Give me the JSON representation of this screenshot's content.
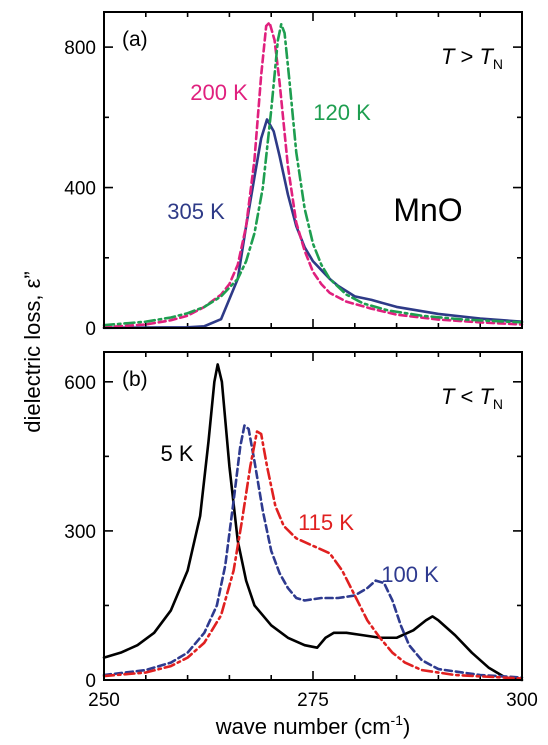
{
  "chart_data": [
    {
      "type": "line",
      "panel_label": "(a)",
      "condition": {
        "italic": "T",
        "relation": " > ",
        "italic2": "T",
        "subscript": "N"
      },
      "material_label": "MnO",
      "xlim": [
        250,
        300
      ],
      "ylim": [
        0,
        900
      ],
      "yticks": [
        0,
        400,
        800
      ],
      "x_tick_labels": [],
      "series": [
        {
          "name": "305 K",
          "color": "#2e3a87",
          "style": "solid",
          "points": [
            [
              250,
              0.5
            ],
            [
              260,
              2
            ],
            [
              262,
              5
            ],
            [
              264,
              25
            ],
            [
              266,
              140
            ],
            [
              267,
              290
            ],
            [
              268,
              430
            ],
            [
              268.8,
              540
            ],
            [
              269.5,
              594
            ],
            [
              270.3,
              560
            ],
            [
              271,
              490
            ],
            [
              272,
              380
            ],
            [
              273,
              290
            ],
            [
              274,
              230
            ],
            [
              275,
              190
            ],
            [
              276,
              165
            ],
            [
              277,
              140
            ],
            [
              278,
              120
            ],
            [
              279,
              105
            ],
            [
              280,
              90
            ],
            [
              282,
              80
            ],
            [
              285,
              60
            ],
            [
              290,
              40
            ],
            [
              295,
              27
            ],
            [
              300,
              18
            ]
          ]
        },
        {
          "name": "200 K",
          "color": "#e0207e",
          "style": "dashed",
          "points": [
            [
              250,
              2
            ],
            [
              255,
              10
            ],
            [
              258,
              22
            ],
            [
              260,
              35
            ],
            [
              262,
              60
            ],
            [
              264,
              95
            ],
            [
              265,
              125
            ],
            [
              266,
              180
            ],
            [
              267,
              290
            ],
            [
              268,
              480
            ],
            [
              268.8,
              720
            ],
            [
              269.4,
              860
            ],
            [
              269.8,
              870
            ],
            [
              270.4,
              820
            ],
            [
              271,
              700
            ],
            [
              272,
              460
            ],
            [
              273,
              300
            ],
            [
              274,
              220
            ],
            [
              275,
              160
            ],
            [
              276,
              125
            ],
            [
              277,
              100
            ],
            [
              279,
              75
            ],
            [
              282,
              55
            ],
            [
              285,
              38
            ],
            [
              290,
              24
            ],
            [
              295,
              16
            ],
            [
              300,
              10
            ]
          ]
        },
        {
          "name": "120 K",
          "color": "#1e9e50",
          "style": "dashdot",
          "points": [
            [
              250,
              8
            ],
            [
              255,
              18
            ],
            [
              258,
              30
            ],
            [
              260,
              42
            ],
            [
              262,
              60
            ],
            [
              264,
              90
            ],
            [
              266,
              140
            ],
            [
              267,
              190
            ],
            [
              268,
              270
            ],
            [
              269,
              400
            ],
            [
              270,
              620
            ],
            [
              270.8,
              820
            ],
            [
              271.2,
              865
            ],
            [
              271.6,
              840
            ],
            [
              272.2,
              700
            ],
            [
              273,
              500
            ],
            [
              274,
              340
            ],
            [
              275,
              240
            ],
            [
              276,
              180
            ],
            [
              277,
              140
            ],
            [
              279,
              95
            ],
            [
              281,
              70
            ],
            [
              284,
              50
            ],
            [
              288,
              35
            ],
            [
              293,
              24
            ],
            [
              300,
              16
            ]
          ]
        }
      ]
    },
    {
      "type": "line",
      "panel_label": "(b)",
      "condition": {
        "italic": "T",
        "relation": " < ",
        "italic2": "T",
        "subscript": "N"
      },
      "xlim": [
        250,
        300
      ],
      "ylim": [
        0,
        660
      ],
      "yticks": [
        0,
        300,
        600
      ],
      "x_tick_labels": [
        "250",
        "275",
        "300"
      ],
      "xlabel": "wave number (cm",
      "xlabel_sup": "-1",
      "xlabel_end": ")",
      "series": [
        {
          "name": "5 K",
          "color": "#000000",
          "style": "solid",
          "points": [
            [
              250,
              45
            ],
            [
              252,
              55
            ],
            [
              254,
              70
            ],
            [
              256,
              95
            ],
            [
              258,
              140
            ],
            [
              260,
              220
            ],
            [
              261.5,
              330
            ],
            [
              262.5,
              480
            ],
            [
              263.2,
              600
            ],
            [
              263.6,
              635
            ],
            [
              264.1,
              600
            ],
            [
              265,
              430
            ],
            [
              266,
              280
            ],
            [
              267,
              200
            ],
            [
              268,
              150
            ],
            [
              270,
              110
            ],
            [
              272,
              85
            ],
            [
              274,
              70
            ],
            [
              275.5,
              65
            ],
            [
              276.5,
              85
            ],
            [
              277.5,
              95
            ],
            [
              279,
              95
            ],
            [
              281,
              90
            ],
            [
              283,
              85
            ],
            [
              285,
              85
            ],
            [
              287,
              100
            ],
            [
              288.5,
              120
            ],
            [
              289.3,
              128
            ],
            [
              290,
              120
            ],
            [
              292,
              90
            ],
            [
              294,
              55
            ],
            [
              296,
              25
            ],
            [
              298,
              5
            ],
            [
              300,
              0
            ]
          ]
        },
        {
          "name": "100 K",
          "color": "#2e3a8f",
          "style": "dashed",
          "points": [
            [
              250,
              10
            ],
            [
              255,
              20
            ],
            [
              258,
              35
            ],
            [
              260,
              55
            ],
            [
              262,
              95
            ],
            [
              263.5,
              150
            ],
            [
              264.5,
              230
            ],
            [
              265.5,
              360
            ],
            [
              266.3,
              470
            ],
            [
              266.8,
              512
            ],
            [
              267.3,
              505
            ],
            [
              268,
              440
            ],
            [
              269,
              340
            ],
            [
              270,
              260
            ],
            [
              271,
              215
            ],
            [
              272,
              185
            ],
            [
              273,
              165
            ],
            [
              274,
              160
            ],
            [
              276,
              165
            ],
            [
              278,
              165
            ],
            [
              280,
              170
            ],
            [
              281.5,
              185
            ],
            [
              282.5,
              200
            ],
            [
              283.5,
              195
            ],
            [
              284.5,
              160
            ],
            [
              285.5,
              110
            ],
            [
              286.5,
              70
            ],
            [
              288,
              40
            ],
            [
              290,
              22
            ],
            [
              295,
              10
            ],
            [
              300,
              5
            ]
          ]
        },
        {
          "name": "115 K",
          "color": "#e02020",
          "style": "dashdot",
          "points": [
            [
              250,
              8
            ],
            [
              255,
              15
            ],
            [
              258,
              28
            ],
            [
              260,
              45
            ],
            [
              262,
              75
            ],
            [
              264,
              130
            ],
            [
              265.5,
              220
            ],
            [
              266.5,
              320
            ],
            [
              267.5,
              430
            ],
            [
              268.3,
              500
            ],
            [
              268.8,
              495
            ],
            [
              269.5,
              430
            ],
            [
              270.5,
              350
            ],
            [
              271.5,
              310
            ],
            [
              273,
              285
            ],
            [
              275,
              270
            ],
            [
              277,
              255
            ],
            [
              278.5,
              220
            ],
            [
              280,
              170
            ],
            [
              281.5,
              120
            ],
            [
              283,
              85
            ],
            [
              284.5,
              55
            ],
            [
              286,
              35
            ],
            [
              288,
              20
            ],
            [
              292,
              10
            ],
            [
              300,
              3
            ]
          ]
        }
      ]
    }
  ],
  "ylabel": "dielectric loss, ε”"
}
